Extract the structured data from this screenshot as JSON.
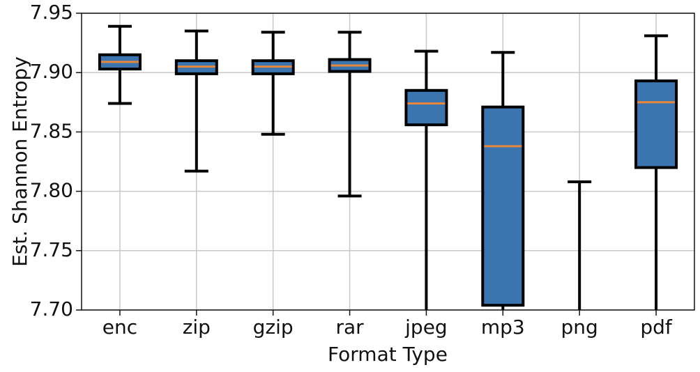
{
  "chart_data": {
    "type": "box",
    "y_label": "Est. Shannon Entropy",
    "x_label": "Format Type",
    "categories": [
      "enc",
      "zip",
      "gzip",
      "rar",
      "jpeg",
      "mp3",
      "png",
      "pdf"
    ],
    "whisker_high": [
      7.939,
      7.935,
      7.934,
      7.934,
      7.918,
      7.917,
      7.808,
      7.931
    ],
    "q3": [
      7.915,
      7.91,
      7.91,
      7.911,
      7.885,
      7.871,
      null,
      7.893
    ],
    "median": [
      7.909,
      7.905,
      7.905,
      7.906,
      7.874,
      7.838,
      null,
      7.875
    ],
    "q1": [
      7.903,
      7.899,
      7.899,
      7.901,
      7.856,
      7.704,
      null,
      7.82
    ],
    "whisker_low": [
      7.874,
      7.817,
      7.848,
      7.796,
      null,
      null,
      null,
      null
    ],
    "box_color": "#3a75b0",
    "median_color": "#e8873a",
    "ylim": [
      7.7,
      7.95
    ],
    "yticks": [
      {
        "value": 7.7,
        "label": "7.70"
      },
      7.75,
      {
        "value": 7.8,
        "label": "7.80"
      },
      7.85,
      {
        "value": 7.9,
        "label": "7.90"
      },
      7.95
    ],
    "grid": true
  }
}
